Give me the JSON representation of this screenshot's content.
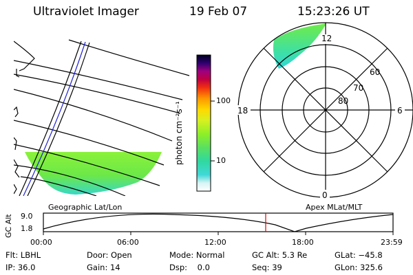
{
  "header": {
    "instrument": "Ultraviolet Imager",
    "date": "19 Feb 07",
    "time": "15:23:26 UT"
  },
  "colorbar": {
    "unit_label": "photon cm⁻²s⁻¹",
    "ticks": [
      "100",
      "10"
    ]
  },
  "left_panel": {
    "caption": "Geographic Lat/Lon"
  },
  "polar_panel": {
    "caption": "Apex MLat/MLT",
    "mlt_labels": {
      "top": "12",
      "left": "18",
      "right": "6",
      "bottom": "0"
    },
    "lat_labels": [
      "60",
      "70",
      "80"
    ]
  },
  "altitude_plot": {
    "y_axis_label": "GC Alt",
    "y_ticks": [
      "9.0",
      "1.8"
    ],
    "x_ticks": [
      "00:00",
      "06:00",
      "12:00",
      "18:00",
      "23:59"
    ]
  },
  "status": {
    "row1": [
      {
        "key": "flt",
        "text": "Flt: LBHL"
      },
      {
        "key": "door",
        "text": "Door: Open"
      },
      {
        "key": "mode",
        "text": "Mode: Normal"
      },
      {
        "key": "gcalt",
        "text": "GC Alt: 5.3 Re"
      },
      {
        "key": "glat",
        "text": "GLat: −45.8"
      }
    ],
    "row2": [
      {
        "key": "ip",
        "text": "IP: 36.0"
      },
      {
        "key": "gain",
        "text": "Gain: 14"
      },
      {
        "key": "dsp",
        "text": "Dsp:    0.0"
      },
      {
        "key": "seq",
        "text": "Seq: 39"
      },
      {
        "key": "glon",
        "text": "GLon: 325.6"
      }
    ]
  },
  "colors": {
    "aurora_green": "#7cf23a",
    "aurora_cyan": "#2fd8d8",
    "current_time_marker": "#e00000",
    "track_line": "#2020d0"
  }
}
